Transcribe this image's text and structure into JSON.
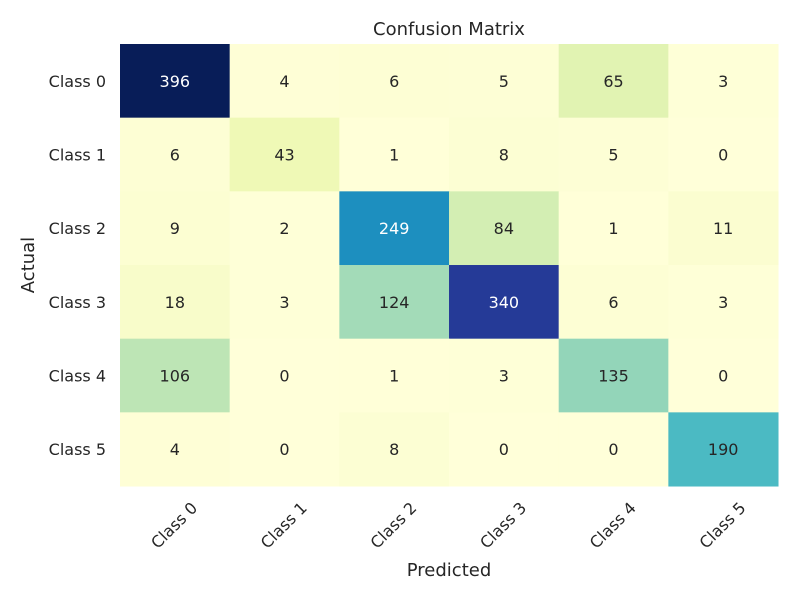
{
  "chart_data": {
    "type": "heatmap",
    "title": "Confusion Matrix",
    "xlabel": "Predicted",
    "ylabel": "Actual",
    "x_categories": [
      "Class 0",
      "Class 1",
      "Class 2",
      "Class 3",
      "Class 4",
      "Class 5"
    ],
    "y_categories": [
      "Class 0",
      "Class 1",
      "Class 2",
      "Class 3",
      "Class 4",
      "Class 5"
    ],
    "values": [
      [
        396,
        4,
        6,
        5,
        65,
        3
      ],
      [
        6,
        43,
        1,
        8,
        5,
        0
      ],
      [
        9,
        2,
        249,
        84,
        1,
        11
      ],
      [
        18,
        3,
        124,
        340,
        6,
        3
      ],
      [
        106,
        0,
        1,
        3,
        135,
        0
      ],
      [
        4,
        0,
        8,
        0,
        0,
        190
      ]
    ],
    "colormap": "YlGnBu",
    "value_range": [
      0,
      396
    ],
    "annotations": true,
    "colorbar": false,
    "x_tick_rotation": 45
  }
}
